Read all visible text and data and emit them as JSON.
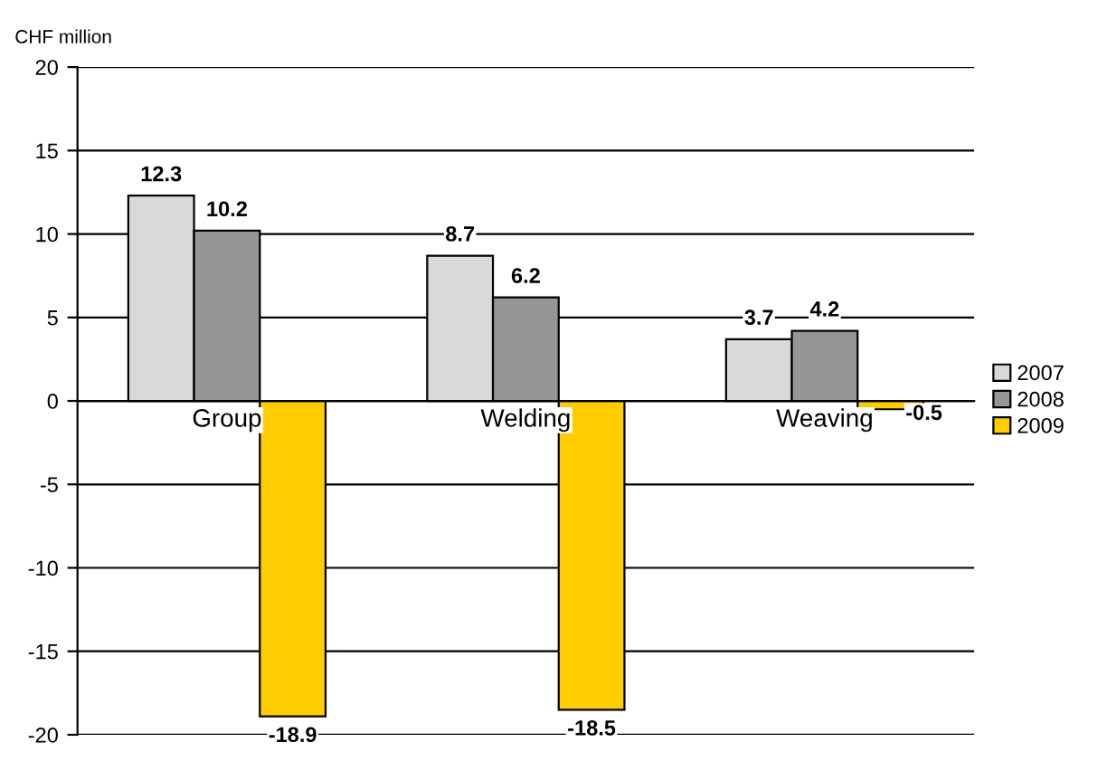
{
  "chart_data": {
    "type": "bar",
    "ylabel": "CHF million",
    "categories": [
      "Group",
      "Welding",
      "Weaving"
    ],
    "series": [
      {
        "name": "2007",
        "color": "#d9d9d9",
        "values": [
          12.3,
          8.7,
          3.7
        ]
      },
      {
        "name": "2008",
        "color": "#969696",
        "values": [
          10.2,
          6.2,
          4.2
        ]
      },
      {
        "name": "2009",
        "color": "#ffcc00",
        "values": [
          -18.9,
          -18.5,
          -0.5
        ]
      }
    ],
    "ylim": [
      -20,
      20
    ],
    "yticks": [
      -20,
      -15,
      -10,
      -5,
      0,
      5,
      10,
      15,
      20
    ],
    "grid": "y",
    "legend": "right",
    "data_labels": true
  }
}
